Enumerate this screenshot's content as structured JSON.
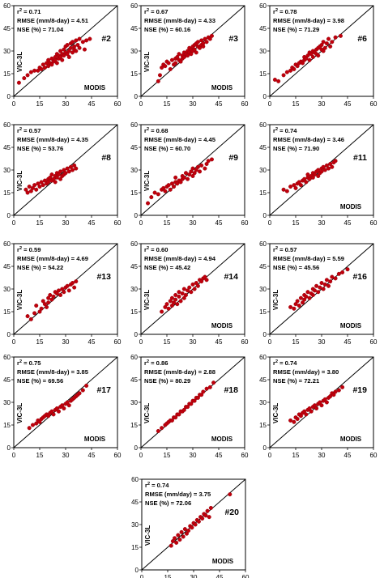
{
  "chart_data": [
    {
      "type": "scatter",
      "panel": "#2",
      "r2": "0.71",
      "rmse": "4.51",
      "rmse_unit": "mm/8-day",
      "nse": "71.04",
      "xlabel": "MODIS",
      "ylabel": "VIC-3L",
      "xlim": [
        0,
        60
      ],
      "ylim": [
        0,
        60
      ],
      "ticks": [
        0,
        15,
        30,
        45,
        60
      ],
      "x": [
        3,
        6,
        8,
        10,
        12,
        14,
        15,
        16,
        17,
        18,
        19,
        20,
        20,
        21,
        22,
        22,
        23,
        24,
        24,
        25,
        25,
        26,
        26,
        27,
        27,
        28,
        28,
        29,
        29,
        30,
        30,
        31,
        31,
        32,
        32,
        33,
        33,
        34,
        34,
        35,
        35,
        36,
        36,
        37,
        38,
        38,
        40,
        41,
        42,
        44
      ],
      "y": [
        9,
        12,
        14,
        16,
        17,
        17,
        19,
        18,
        21,
        19,
        22,
        20,
        24,
        22,
        21,
        25,
        23,
        24,
        26,
        22,
        28,
        25,
        27,
        26,
        30,
        28,
        24,
        31,
        27,
        29,
        33,
        28,
        34,
        30,
        26,
        32,
        35,
        29,
        36,
        31,
        33,
        37,
        30,
        34,
        38,
        32,
        36,
        31,
        37,
        38
      ]
    },
    {
      "type": "scatter",
      "panel": "#3",
      "r2": "0.67",
      "rmse": "4.33",
      "rmse_unit": "mm/8-day",
      "nse": "60.16",
      "xlabel": "MODIS",
      "ylabel": "VIC-3L",
      "xlim": [
        0,
        60
      ],
      "ylim": [
        0,
        60
      ],
      "ticks": [
        0,
        15,
        30,
        45,
        60
      ],
      "x": [
        10,
        11,
        12,
        13,
        14,
        15,
        16,
        17,
        18,
        19,
        20,
        20,
        21,
        22,
        22,
        23,
        24,
        24,
        25,
        25,
        26,
        27,
        27,
        28,
        28,
        29,
        29,
        30,
        30,
        31,
        31,
        32,
        32,
        33,
        33,
        34,
        35,
        35,
        36,
        36,
        37,
        38,
        39,
        40,
        41
      ],
      "y": [
        10,
        14,
        19,
        21,
        20,
        23,
        22,
        18,
        24,
        21,
        25,
        22,
        26,
        24,
        28,
        23,
        27,
        25,
        29,
        26,
        28,
        30,
        27,
        32,
        29,
        31,
        28,
        33,
        30,
        34,
        31,
        35,
        29,
        33,
        36,
        32,
        34,
        37,
        35,
        33,
        38,
        36,
        39,
        38,
        40
      ]
    },
    {
      "type": "scatter",
      "panel": "#6",
      "r2": "0.78",
      "rmse": "3.98",
      "rmse_unit": "mm/8-day",
      "nse": "71.29",
      "xlabel": "",
      "ylabel": "",
      "xlim": [
        0,
        60
      ],
      "ylim": [
        0,
        60
      ],
      "ticks": [
        0,
        15,
        30,
        45,
        60
      ],
      "x": [
        3,
        5,
        8,
        10,
        12,
        13,
        14,
        15,
        16,
        17,
        18,
        19,
        20,
        20,
        21,
        22,
        23,
        23,
        24,
        25,
        25,
        26,
        27,
        27,
        28,
        28,
        29,
        30,
        30,
        31,
        31,
        32,
        33,
        34,
        35,
        36,
        38,
        41
      ],
      "y": [
        11,
        10,
        14,
        16,
        17,
        19,
        18,
        21,
        20,
        22,
        23,
        22,
        26,
        24,
        25,
        27,
        24,
        29,
        28,
        26,
        30,
        29,
        31,
        28,
        32,
        27,
        33,
        31,
        34,
        30,
        36,
        32,
        35,
        38,
        33,
        36,
        39,
        40
      ]
    },
    {
      "type": "scatter",
      "panel": "#8",
      "r2": "0.57",
      "rmse": "4.35",
      "rmse_unit": "mm/8-day",
      "nse": "53.76",
      "xlabel": "",
      "ylabel": "VIC-3L",
      "xlim": [
        0,
        60
      ],
      "ylim": [
        0,
        60
      ],
      "ticks": [
        0,
        15,
        30,
        45,
        60
      ],
      "x": [
        7,
        8,
        9,
        10,
        11,
        12,
        13,
        14,
        15,
        16,
        17,
        18,
        19,
        20,
        20,
        21,
        22,
        22,
        23,
        24,
        24,
        25,
        25,
        26,
        27,
        27,
        28,
        29,
        29,
        30,
        31,
        32,
        33,
        34,
        35,
        36
      ],
      "y": [
        17,
        15,
        19,
        16,
        18,
        20,
        17,
        21,
        19,
        22,
        20,
        23,
        21,
        24,
        22,
        25,
        23,
        27,
        24,
        26,
        22,
        28,
        25,
        27,
        29,
        24,
        26,
        30,
        27,
        28,
        31,
        29,
        32,
        30,
        33,
        31
      ]
    },
    {
      "type": "scatter",
      "panel": "#9",
      "r2": "0.68",
      "rmse": "4.45",
      "rmse_unit": "mm/8-day",
      "nse": "60.70",
      "xlabel": "",
      "ylabel": "VIC-3L",
      "xlim": [
        0,
        60
      ],
      "ylim": [
        0,
        60
      ],
      "ticks": [
        0,
        15,
        30,
        45,
        60
      ],
      "x": [
        4,
        6,
        8,
        10,
        12,
        13,
        14,
        15,
        16,
        17,
        18,
        19,
        20,
        20,
        21,
        22,
        23,
        24,
        24,
        25,
        26,
        27,
        28,
        29,
        30,
        30,
        31,
        32,
        33,
        34,
        35,
        37,
        38,
        39,
        41
      ],
      "y": [
        8,
        12,
        15,
        14,
        17,
        18,
        16,
        19,
        20,
        17,
        21,
        19,
        22,
        25,
        21,
        23,
        22,
        26,
        24,
        25,
        28,
        24,
        27,
        29,
        26,
        31,
        28,
        30,
        32,
        29,
        33,
        31,
        34,
        36,
        37
      ]
    },
    {
      "type": "scatter",
      "panel": "#11",
      "r2": "0.74",
      "rmse": "3.46",
      "rmse_unit": "mm/8-day",
      "nse": "71.90",
      "xlabel": "MODIS",
      "ylabel": "",
      "xlim": [
        0,
        60
      ],
      "ylim": [
        0,
        60
      ],
      "ticks": [
        0,
        15,
        30,
        45,
        60
      ],
      "x": [
        8,
        10,
        12,
        14,
        15,
        16,
        17,
        18,
        19,
        20,
        21,
        22,
        22,
        23,
        24,
        25,
        25,
        26,
        27,
        28,
        28,
        29,
        30,
        30,
        31,
        32,
        33,
        34,
        35,
        36,
        37,
        38
      ],
      "y": [
        17,
        16,
        19,
        20,
        18,
        21,
        22,
        20,
        23,
        24,
        22,
        25,
        27,
        24,
        26,
        28,
        25,
        27,
        29,
        26,
        30,
        28,
        31,
        29,
        32,
        30,
        33,
        31,
        34,
        32,
        35,
        36
      ]
    },
    {
      "type": "scatter",
      "panel": "#13",
      "r2": "0.59",
      "rmse": "4.69",
      "rmse_unit": "mm/8-day",
      "nse": "54.22",
      "xlabel": "",
      "ylabel": "VIC-3L",
      "xlim": [
        0,
        60
      ],
      "ylim": [
        0,
        60
      ],
      "ticks": [
        0,
        15,
        30,
        45,
        60
      ],
      "x": [
        8,
        10,
        12,
        13,
        15,
        16,
        17,
        18,
        19,
        20,
        20,
        21,
        22,
        23,
        24,
        25,
        26,
        27,
        28,
        29,
        30,
        31,
        32,
        33,
        34,
        35,
        36
      ],
      "y": [
        12,
        10,
        14,
        19,
        15,
        17,
        22,
        20,
        18,
        24,
        21,
        26,
        23,
        25,
        28,
        27,
        29,
        26,
        30,
        28,
        31,
        32,
        29,
        33,
        34,
        31,
        35
      ]
    },
    {
      "type": "scatter",
      "panel": "#14",
      "r2": "0.60",
      "rmse": "4.94",
      "rmse_unit": "mm/8-day",
      "nse": "45.42",
      "xlabel": "MODIS",
      "ylabel": "VIC-3L",
      "xlim": [
        0,
        60
      ],
      "ylim": [
        0,
        60
      ],
      "ticks": [
        0,
        15,
        30,
        45,
        60
      ],
      "x": [
        12,
        14,
        15,
        16,
        17,
        18,
        18,
        19,
        20,
        20,
        21,
        22,
        22,
        23,
        24,
        25,
        25,
        26,
        27,
        28,
        29,
        30,
        31,
        32,
        33,
        34,
        35,
        36,
        37,
        38
      ],
      "y": [
        15,
        18,
        20,
        17,
        22,
        19,
        24,
        21,
        23,
        26,
        20,
        25,
        28,
        22,
        27,
        24,
        30,
        26,
        29,
        31,
        28,
        33,
        30,
        34,
        32,
        36,
        35,
        37,
        38,
        36
      ]
    },
    {
      "type": "scatter",
      "panel": "#16",
      "r2": "0.57",
      "rmse": "5.59",
      "rmse_unit": "mm/8-day",
      "nse": "45.56",
      "xlabel": "MODIS",
      "ylabel": "VIC-3L",
      "xlim": [
        0,
        60
      ],
      "ylim": [
        0,
        60
      ],
      "ticks": [
        0,
        15,
        30,
        45,
        60
      ],
      "x": [
        12,
        14,
        15,
        16,
        17,
        18,
        19,
        20,
        20,
        21,
        22,
        23,
        24,
        25,
        25,
        26,
        27,
        28,
        29,
        30,
        31,
        32,
        33,
        34,
        35,
        36,
        38,
        40,
        42,
        45
      ],
      "y": [
        18,
        17,
        20,
        22,
        19,
        24,
        21,
        26,
        23,
        25,
        28,
        24,
        27,
        30,
        26,
        29,
        32,
        28,
        31,
        34,
        30,
        33,
        36,
        32,
        35,
        38,
        37,
        40,
        41,
        43
      ]
    },
    {
      "type": "scatter",
      "panel": "#17",
      "r2": "0.75",
      "rmse": "3.85",
      "rmse_unit": "mm/8-day",
      "nse": "69.56",
      "xlabel": "MODIS",
      "ylabel": "VIC-3L",
      "xlim": [
        0,
        60
      ],
      "ylim": [
        0,
        60
      ],
      "ticks": [
        0,
        15,
        30,
        45,
        60
      ],
      "x": [
        9,
        11,
        13,
        14,
        15,
        16,
        17,
        18,
        19,
        20,
        21,
        22,
        23,
        24,
        25,
        26,
        27,
        28,
        29,
        30,
        31,
        32,
        33,
        34,
        35,
        36,
        37,
        38,
        40,
        42
      ],
      "y": [
        13,
        15,
        16,
        18,
        17,
        19,
        20,
        21,
        22,
        21,
        23,
        24,
        22,
        25,
        26,
        24,
        27,
        28,
        26,
        29,
        30,
        28,
        31,
        32,
        33,
        34,
        35,
        36,
        38,
        41
      ]
    },
    {
      "type": "scatter",
      "panel": "#18",
      "r2": "0.86",
      "rmse": "2.88",
      "rmse_unit": "mm/8-day",
      "nse": "80.29",
      "xlabel": "MODIS",
      "ylabel": "VIC-3L",
      "xlim": [
        0,
        60
      ],
      "ylim": [
        0,
        60
      ],
      "ticks": [
        0,
        15,
        30,
        45,
        60
      ],
      "x": [
        10,
        12,
        14,
        15,
        16,
        17,
        18,
        19,
        20,
        21,
        22,
        23,
        24,
        25,
        26,
        27,
        28,
        29,
        30,
        31,
        32,
        33,
        34,
        35,
        36,
        38,
        40,
        42
      ],
      "y": [
        11,
        13,
        15,
        16,
        17,
        18,
        18,
        20,
        20,
        22,
        22,
        24,
        24,
        25,
        27,
        27,
        29,
        29,
        31,
        31,
        33,
        33,
        35,
        35,
        37,
        39,
        40,
        43
      ]
    },
    {
      "type": "scatter",
      "panel": "#19",
      "r2": "0.74",
      "rmse": "3.80",
      "rmse_unit": "mm/day",
      "nse": "72.21",
      "xlabel": "MODIS",
      "ylabel": "VIC-3L",
      "xlim": [
        0,
        60
      ],
      "ylim": [
        0,
        60
      ],
      "ticks": [
        0,
        15,
        30,
        45,
        60
      ],
      "x": [
        12,
        14,
        15,
        16,
        17,
        18,
        19,
        20,
        21,
        22,
        23,
        24,
        25,
        26,
        27,
        28,
        29,
        30,
        31,
        32,
        33,
        34,
        35,
        36,
        37,
        38,
        40,
        42
      ],
      "y": [
        18,
        17,
        20,
        19,
        22,
        21,
        23,
        24,
        22,
        25,
        26,
        24,
        27,
        28,
        26,
        29,
        30,
        28,
        31,
        32,
        30,
        33,
        34,
        36,
        35,
        37,
        38,
        40
      ]
    },
    {
      "type": "scatter",
      "panel": "#20",
      "r2": "0.74",
      "rmse": "3.75",
      "rmse_unit": "mm/day",
      "nse": "72.06",
      "xlabel": "MODIS",
      "ylabel": "VIC-3L",
      "xlim": [
        0,
        60
      ],
      "ylim": [
        0,
        60
      ],
      "ticks": [
        0,
        15,
        30,
        45,
        60
      ],
      "x": [
        17,
        18,
        19,
        20,
        21,
        22,
        23,
        24,
        25,
        26,
        27,
        28,
        29,
        30,
        31,
        32,
        33,
        34,
        35,
        36,
        37,
        38,
        39,
        40,
        51
      ],
      "y": [
        16,
        19,
        21,
        18,
        23,
        20,
        25,
        22,
        27,
        24,
        26,
        29,
        28,
        31,
        30,
        33,
        32,
        35,
        34,
        37,
        36,
        39,
        35,
        41,
        50
      ]
    }
  ]
}
